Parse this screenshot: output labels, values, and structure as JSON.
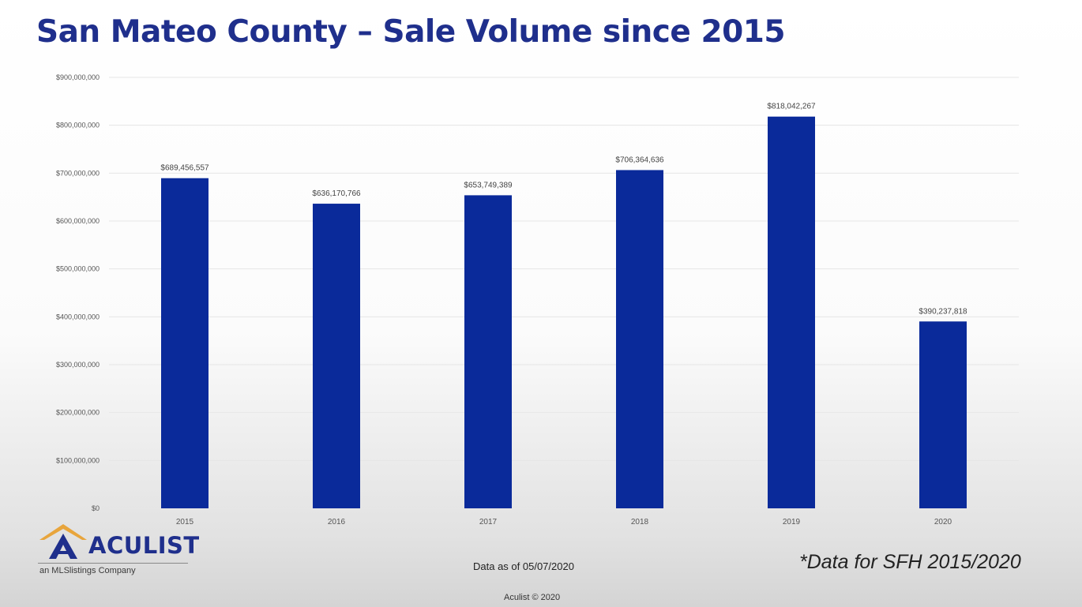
{
  "title": "San Mateo County – Sale Volume since 2015",
  "chart_data": {
    "type": "bar",
    "categories": [
      "2015",
      "2016",
      "2017",
      "2018",
      "2019",
      "2020"
    ],
    "values": [
      689456557,
      636170766,
      653749389,
      706364636,
      818042267,
      390237818
    ],
    "data_labels": [
      "$689,456,557",
      "$636,170,766",
      "$653,749,389",
      "$706,364,636",
      "$818,042,267",
      "$390,237,818"
    ],
    "ylim": [
      0,
      900000000
    ],
    "y_ticks": [
      0,
      100000000,
      200000000,
      300000000,
      400000000,
      500000000,
      600000000,
      700000000,
      800000000,
      900000000
    ],
    "y_tick_labels": [
      "$0",
      "$100,000,000",
      "$200,000,000",
      "$300,000,000",
      "$400,000,000",
      "$500,000,000",
      "$600,000,000",
      "$700,000,000",
      "$800,000,000",
      "$900,000,000"
    ],
    "bar_color": "#0a2a9a",
    "grid": true,
    "legend": "none"
  },
  "footer": {
    "logo_name": "ACULIST",
    "logo_tagline": "an MLSlistings Company",
    "data_as_of": "Data as of 05/07/2020",
    "sfh_note": "*Data for SFH 2015/2020",
    "copyright": "Aculist © 2020"
  },
  "colors": {
    "title": "#1f2f8c",
    "logo_roof": "#e8a53c",
    "logo_mark": "#1f2f8c"
  }
}
